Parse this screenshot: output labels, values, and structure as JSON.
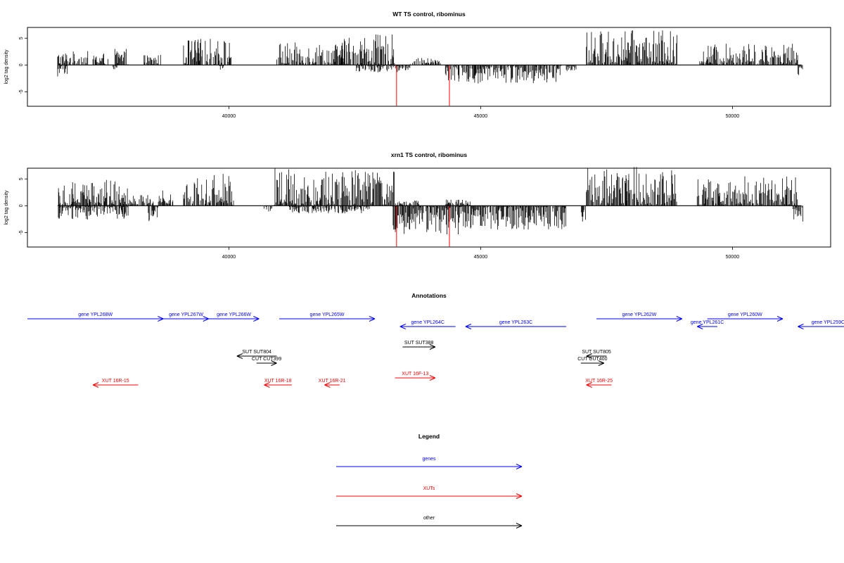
{
  "chart_data": [
    {
      "type": "bar",
      "title": "WT TS control, ribominus",
      "ylabel": "log2 tag density",
      "xlim": [
        36000,
        51950
      ],
      "ylim": [
        -7.7,
        7.0
      ],
      "x_ticks": [
        40000,
        45000,
        50000
      ],
      "y_ticks": [
        -5,
        0,
        5
      ],
      "colors": {
        "bars": "#000000",
        "highlight": "#ff0000"
      },
      "plus_regions": [
        {
          "start": 36600,
          "end": 37200,
          "max": 2.6
        },
        {
          "start": 37300,
          "end": 37600,
          "max": 2.3
        },
        {
          "start": 37700,
          "end": 38000,
          "max": 3.0
        },
        {
          "start": 38300,
          "end": 38650,
          "max": 2.0
        },
        {
          "start": 39100,
          "end": 40050,
          "max": 5.0
        },
        {
          "start": 40950,
          "end": 42300,
          "max": 4.2
        },
        {
          "start": 42200,
          "end": 43300,
          "max": 5.7
        },
        {
          "start": 43600,
          "end": 44200,
          "max": 1.3
        },
        {
          "start": 47100,
          "end": 48900,
          "max": 6.5
        },
        {
          "start": 49350,
          "end": 51300,
          "max": 4.0
        }
      ],
      "minus_regions": [
        {
          "start": 36600,
          "end": 36800,
          "max": 2.8
        },
        {
          "start": 37700,
          "end": 37800,
          "max": 0.8
        },
        {
          "start": 39800,
          "end": 39900,
          "max": 1.3
        },
        {
          "start": 42500,
          "end": 43600,
          "max": 1.4
        },
        {
          "start": 44300,
          "end": 46600,
          "max": 3.5
        },
        {
          "start": 46700,
          "end": 46900,
          "max": 1.2
        },
        {
          "start": 51300,
          "end": 51400,
          "max": 2.0
        }
      ],
      "highlight_x": [
        43330,
        44380
      ],
      "highlight_depth": 7.6
    },
    {
      "type": "bar",
      "title": "xrn1 TS control, ribominus",
      "ylabel": "log2 tag density",
      "xlim": [
        36000,
        51950
      ],
      "ylim": [
        -7.7,
        7.0
      ],
      "x_ticks": [
        40000,
        45000,
        50000
      ],
      "y_ticks": [
        -5,
        0,
        5
      ],
      "colors": {
        "bars": "#000000",
        "highlight": "#ff0000"
      },
      "plus_regions": [
        {
          "start": 36600,
          "end": 38000,
          "max": 5.0
        },
        {
          "start": 38000,
          "end": 38500,
          "max": 2.0
        },
        {
          "start": 38600,
          "end": 38900,
          "max": 3.0
        },
        {
          "start": 39100,
          "end": 40100,
          "max": 6.0
        },
        {
          "start": 40900,
          "end": 43300,
          "max": 7.0
        },
        {
          "start": 43300,
          "end": 43800,
          "max": 1.0
        },
        {
          "start": 44300,
          "end": 44800,
          "max": 1.2
        },
        {
          "start": 47100,
          "end": 48900,
          "max": 7.5
        },
        {
          "start": 49300,
          "end": 51300,
          "max": 5.5
        }
      ],
      "minus_regions": [
        {
          "start": 36600,
          "end": 38000,
          "max": 2.6
        },
        {
          "start": 38400,
          "end": 38600,
          "max": 3.0
        },
        {
          "start": 40700,
          "end": 40900,
          "max": 1.2
        },
        {
          "start": 41200,
          "end": 42800,
          "max": 1.5
        },
        {
          "start": 43250,
          "end": 44800,
          "max": 5.5
        },
        {
          "start": 44800,
          "end": 46700,
          "max": 4.5
        },
        {
          "start": 47000,
          "end": 47100,
          "max": 3.0
        },
        {
          "start": 51200,
          "end": 51400,
          "max": 3.0
        }
      ],
      "highlight_x": [
        43330,
        44380
      ],
      "highlight_depth": 7.6
    }
  ],
  "annotations": {
    "title": "Annotations",
    "rows": [
      [
        {
          "label": "gene YPL268W",
          "start": 36000,
          "end": 38700,
          "strand": "+",
          "type": "gene"
        },
        {
          "label": "gene YPL267W",
          "start": 38700,
          "end": 39600,
          "strand": "+",
          "type": "gene"
        },
        {
          "label": "gene YPL266W",
          "start": 39600,
          "end": 40600,
          "strand": "+",
          "type": "gene"
        },
        {
          "label": "gene YPL265W",
          "start": 41000,
          "end": 42900,
          "strand": "+",
          "type": "gene"
        },
        {
          "label": "gene YPL262W",
          "start": 47300,
          "end": 49000,
          "strand": "+",
          "type": "gene"
        },
        {
          "label": "gene YPL260W",
          "start": 49500,
          "end": 51000,
          "strand": "+",
          "type": "gene"
        }
      ],
      [
        {
          "label": "gene YPL264C",
          "start": 43400,
          "end": 44500,
          "strand": "-",
          "type": "gene"
        },
        {
          "label": "gene YPL263C",
          "start": 44700,
          "end": 46700,
          "strand": "-",
          "type": "gene"
        },
        {
          "label": "gene YPL261C",
          "start": 49300,
          "end": 49700,
          "strand": "-",
          "type": "gene"
        },
        {
          "label": "gene YPL259C",
          "start": 51300,
          "end": 52500,
          "strand": "-",
          "type": "gene"
        }
      ],
      [
        {
          "label": "SUT SUT388",
          "start": 43450,
          "end": 44100,
          "strand": "+",
          "type": "other"
        }
      ],
      [
        {
          "label": "SUT SUT804",
          "start": 40160,
          "end": 40950,
          "strand": "-",
          "type": "other"
        },
        {
          "label": "SUT SUT805",
          "start": 47100,
          "end": 47500,
          "strand": "-",
          "type": "other"
        }
      ],
      [
        {
          "label": "CUT CUT399",
          "start": 40550,
          "end": 40950,
          "strand": "+",
          "type": "other"
        },
        {
          "label": "CUT CUT400",
          "start": 46990,
          "end": 47450,
          "strand": "+",
          "type": "other"
        }
      ],
      [
        {
          "label": "XUT 16F-13",
          "start": 43300,
          "end": 44100,
          "strand": "+",
          "type": "xut"
        }
      ],
      [
        {
          "label": "XUT 16R-15",
          "start": 37300,
          "end": 38200,
          "strand": "-",
          "type": "xut"
        },
        {
          "label": "XUT 16R-18",
          "start": 40700,
          "end": 41250,
          "strand": "-",
          "type": "xut"
        },
        {
          "label": "XUT 16R-21",
          "start": 41900,
          "end": 42200,
          "strand": "-",
          "type": "xut"
        },
        {
          "label": "XUT 16R-25",
          "start": 47100,
          "end": 47600,
          "strand": "-",
          "type": "xut"
        }
      ]
    ]
  },
  "legend": {
    "title": "Legend",
    "items": [
      {
        "label": "genes",
        "color": "#0000ff"
      },
      {
        "label": "XUTs",
        "color": "#ff0000"
      },
      {
        "label": "other",
        "color": "#000000"
      }
    ]
  },
  "colors": {
    "gene": "#0000ff",
    "xut": "#ff0000",
    "other": "#000000"
  }
}
